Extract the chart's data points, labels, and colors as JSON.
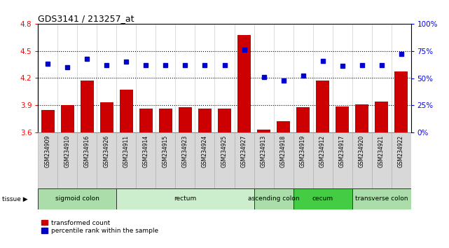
{
  "title": "GDS3141 / 213257_at",
  "samples": [
    "GSM234909",
    "GSM234910",
    "GSM234916",
    "GSM234926",
    "GSM234911",
    "GSM234914",
    "GSM234915",
    "GSM234923",
    "GSM234924",
    "GSM234925",
    "GSM234927",
    "GSM234913",
    "GSM234918",
    "GSM234919",
    "GSM234912",
    "GSM234917",
    "GSM234920",
    "GSM234921",
    "GSM234922"
  ],
  "transformed_count": [
    3.85,
    3.9,
    4.17,
    3.93,
    4.07,
    3.86,
    3.86,
    3.88,
    3.86,
    3.86,
    4.68,
    3.63,
    3.72,
    3.88,
    4.17,
    3.89,
    3.91,
    3.94,
    4.27
  ],
  "percentile_rank": [
    63,
    60,
    68,
    62,
    65,
    62,
    62,
    62,
    62,
    62,
    76,
    51,
    48,
    52,
    66,
    61,
    62,
    62,
    72
  ],
  "ylim_left": [
    3.6,
    4.8
  ],
  "ylim_right": [
    0,
    100
  ],
  "yticks_left": [
    3.6,
    3.9,
    4.2,
    4.5,
    4.8
  ],
  "yticks_right": [
    0,
    25,
    50,
    75,
    100
  ],
  "bar_color": "#cc0000",
  "dot_color": "#0000cc",
  "tissue_groups": [
    {
      "label": "sigmoid colon",
      "start": 0,
      "end": 4,
      "color": "#aaddaa"
    },
    {
      "label": "rectum",
      "start": 4,
      "end": 11,
      "color": "#cceecc"
    },
    {
      "label": "ascending colon",
      "start": 11,
      "end": 13,
      "color": "#aaddaa"
    },
    {
      "label": "cecum",
      "start": 13,
      "end": 16,
      "color": "#44cc44"
    },
    {
      "label": "transverse colon",
      "start": 16,
      "end": 19,
      "color": "#aaddaa"
    }
  ],
  "hline_values": [
    3.9,
    4.2,
    4.5
  ],
  "bg_color": "#ffffff",
  "xtick_bg_color": "#d8d8d8",
  "xtick_border_color": "#aaaaaa"
}
